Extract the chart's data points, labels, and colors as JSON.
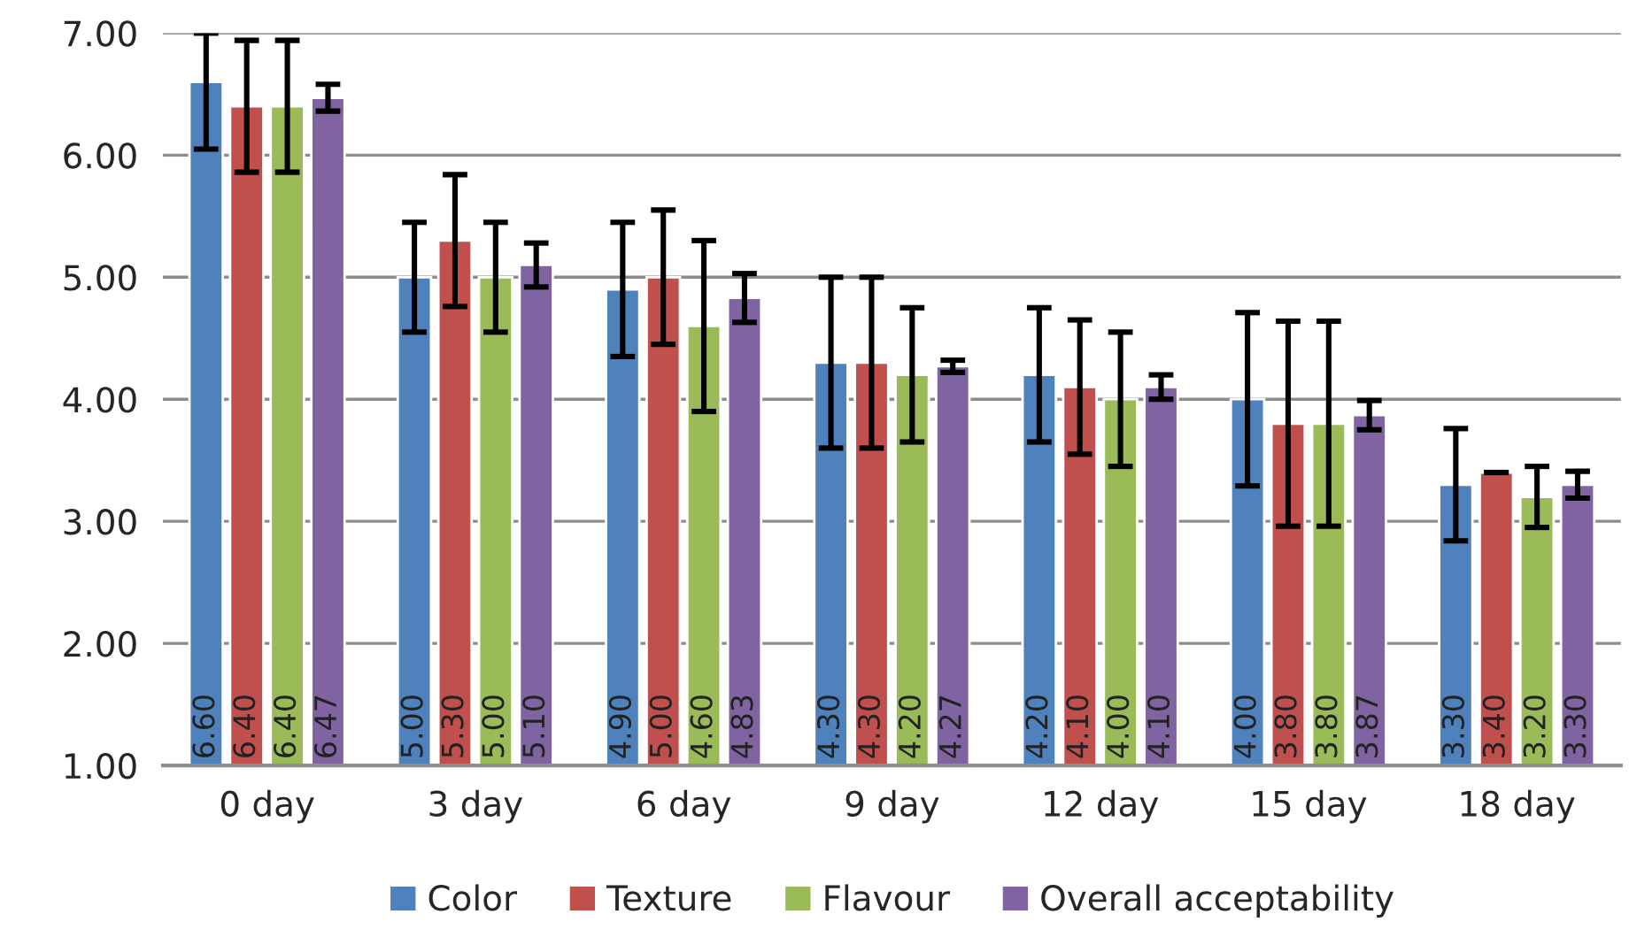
{
  "chart_data": {
    "type": "bar",
    "categories": [
      "0 day",
      "3 day",
      "6 day",
      "9 day",
      "12 day",
      "15 day",
      "18 day"
    ],
    "series": [
      {
        "name": "Color",
        "color": "#4f81bd",
        "values": [
          6.6,
          5.0,
          4.9,
          4.3,
          4.2,
          4.0,
          3.3
        ],
        "errors": [
          [
            6.05,
            7.0
          ],
          0.45,
          0.55,
          0.7,
          0.55,
          0.71,
          0.46
        ],
        "value_labels": [
          "6.60",
          "5.00",
          "4.90",
          "4.30",
          "4.20",
          "4.00",
          "3.30"
        ]
      },
      {
        "name": "Texture",
        "color": "#c0504d",
        "values": [
          6.4,
          5.3,
          5.0,
          4.3,
          4.1,
          3.8,
          3.4
        ],
        "errors": [
          0.54,
          0.54,
          0.55,
          0.7,
          0.55,
          0.84,
          0
        ],
        "value_labels": [
          "6.40",
          "5.30",
          "5.00",
          "4.30",
          "4.10",
          "3.80",
          "3.40"
        ]
      },
      {
        "name": "Flavour",
        "color": "#9bbb59",
        "values": [
          6.4,
          5.0,
          4.6,
          4.2,
          4.0,
          3.8,
          3.2
        ],
        "errors": [
          0.54,
          0.45,
          0.7,
          0.55,
          0.55,
          0.84,
          0.25
        ],
        "value_labels": [
          "6.40",
          "5.00",
          "4.60",
          "4.20",
          "4.00",
          "3.80",
          "3.20"
        ]
      },
      {
        "name": "Overall acceptability",
        "color": "#8064a2",
        "values": [
          6.47,
          5.1,
          4.83,
          4.27,
          4.1,
          3.87,
          3.3
        ],
        "errors": [
          0.11,
          0.18,
          0.2,
          0.05,
          0.1,
          0.12,
          0.11
        ],
        "value_labels": [
          "6.47",
          "5.10",
          "4.83",
          "4.27",
          "4.10",
          "3.87",
          "3.30"
        ]
      }
    ],
    "ylim": [
      1.0,
      7.0
    ],
    "yticks": [
      {
        "value": 1,
        "label": "1.00"
      },
      {
        "value": 2,
        "label": "2.00"
      },
      {
        "value": 3,
        "label": "3.00"
      },
      {
        "value": 4,
        "label": "4.00"
      },
      {
        "value": 5,
        "label": "5.00"
      },
      {
        "value": 6,
        "label": "6.00"
      },
      {
        "value": 7,
        "label": "7.00"
      }
    ],
    "grid": "y",
    "legend": "bottom"
  }
}
